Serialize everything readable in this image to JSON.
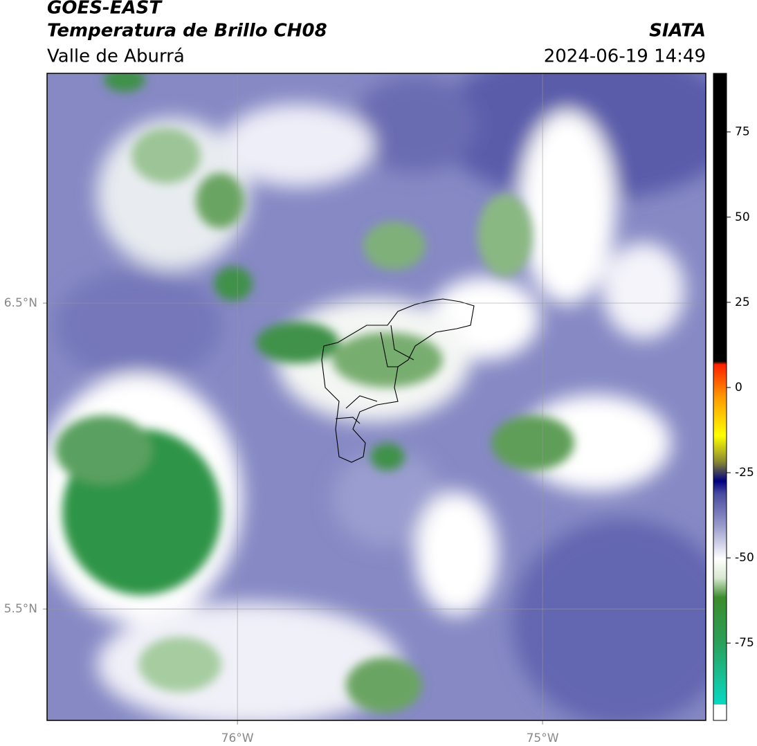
{
  "header": {
    "title": "GOES-EAST",
    "subtitle": "Temperatura de Brillo CH08",
    "region": "Valle de Aburrá",
    "source": "SIATA",
    "datetime": "2024-06-19 14:49"
  },
  "map": {
    "lonlim": [
      -76.624,
      -74.465
    ],
    "latlim": [
      5.136,
      7.251
    ],
    "lonticks": [
      {
        "value": -76,
        "label": "76°W"
      },
      {
        "value": -75,
        "label": "75°W"
      }
    ],
    "latticks": [
      {
        "value": 6.5,
        "label": "6.5°N"
      },
      {
        "value": 5.5,
        "label": "5.5°N"
      }
    ]
  },
  "colorbar": {
    "lim": [
      -97.7,
      92.2
    ],
    "ticks": [
      75,
      50,
      25,
      0,
      -25,
      -50,
      -75
    ]
  }
}
